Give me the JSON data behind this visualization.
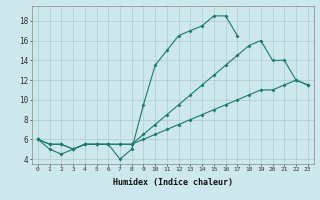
{
  "xlabel": "Humidex (Indice chaleur)",
  "bg_color": "#cce8ec",
  "grid_color": "#aacccc",
  "line_color": "#1a7a6e",
  "xlim": [
    -0.5,
    23.5
  ],
  "ylim": [
    3.5,
    19.5
  ],
  "xticks": [
    0,
    1,
    2,
    3,
    4,
    5,
    6,
    7,
    8,
    9,
    10,
    11,
    12,
    13,
    14,
    15,
    16,
    17,
    18,
    19,
    20,
    21,
    22,
    23
  ],
  "yticks": [
    4,
    6,
    8,
    10,
    12,
    14,
    16,
    18
  ],
  "line1_x": [
    0,
    1,
    2,
    3,
    4,
    5,
    6,
    7,
    8,
    9,
    10,
    11,
    12,
    13,
    14,
    15,
    16,
    17
  ],
  "line1_y": [
    6,
    5,
    4.5,
    5,
    5.5,
    5.5,
    5.5,
    4,
    5,
    9.5,
    13.5,
    15,
    16.5,
    17,
    17.5,
    18.5,
    18.5,
    16.5
  ],
  "line2_x": [
    0,
    1,
    2,
    3,
    4,
    5,
    6,
    7,
    8,
    9,
    10,
    11,
    12,
    13,
    14,
    15,
    16,
    17,
    18,
    19,
    20,
    21,
    22,
    23
  ],
  "line2_y": [
    6,
    5.5,
    5.5,
    5,
    5.5,
    5.5,
    5.5,
    5.5,
    5.5,
    6.5,
    7.5,
    8.5,
    9.5,
    10.5,
    11.5,
    12.5,
    13.5,
    14.5,
    15.5,
    16,
    14,
    14,
    12,
    11.5
  ],
  "line3_x": [
    0,
    1,
    2,
    3,
    4,
    5,
    6,
    7,
    8,
    9,
    10,
    11,
    12,
    13,
    14,
    15,
    16,
    17,
    18,
    19,
    20,
    21,
    22,
    23
  ],
  "line3_y": [
    6,
    5.5,
    5.5,
    5,
    5.5,
    5.5,
    5.5,
    5.5,
    5.5,
    6,
    6.5,
    7,
    7.5,
    8,
    8.5,
    9,
    9.5,
    10,
    10.5,
    11,
    11,
    11.5,
    12,
    11.5
  ]
}
